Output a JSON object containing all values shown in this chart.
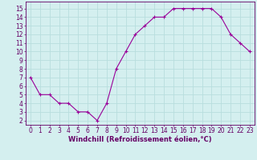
{
  "x": [
    0,
    1,
    2,
    3,
    4,
    5,
    6,
    7,
    8,
    9,
    10,
    11,
    12,
    13,
    14,
    15,
    16,
    17,
    18,
    19,
    20,
    21,
    22,
    23
  ],
  "y": [
    7,
    5,
    5,
    4,
    4,
    3,
    3,
    2,
    4,
    8,
    10,
    12,
    13,
    14,
    14,
    15,
    15,
    15,
    15,
    15,
    14,
    12,
    11,
    10
  ],
  "line_color": "#990099",
  "marker": "+",
  "marker_size": 3,
  "marker_lw": 0.8,
  "bg_color": "#d4efef",
  "grid_color": "#b8dede",
  "xlabel": "Windchill (Refroidissement éolien,°C)",
  "xlim": [
    -0.5,
    23.5
  ],
  "ylim": [
    1.5,
    15.8
  ],
  "yticks": [
    2,
    3,
    4,
    5,
    6,
    7,
    8,
    9,
    10,
    11,
    12,
    13,
    14,
    15
  ],
  "xticks": [
    0,
    1,
    2,
    3,
    4,
    5,
    6,
    7,
    8,
    9,
    10,
    11,
    12,
    13,
    14,
    15,
    16,
    17,
    18,
    19,
    20,
    21,
    22,
    23
  ],
  "tick_color": "#660066",
  "label_color": "#660066",
  "spine_color": "#660066",
  "font_size": 5.5,
  "xlabel_size": 6.0,
  "lw": 0.8
}
